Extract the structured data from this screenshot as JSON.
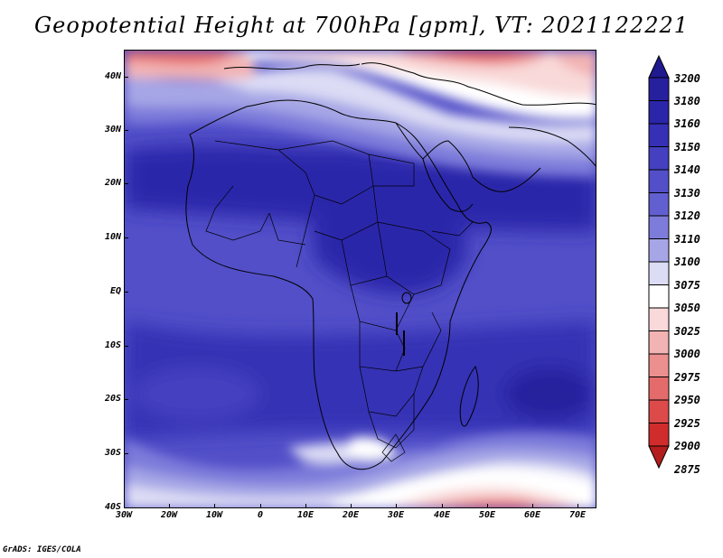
{
  "title": "Geopotential Height at 700hPa [gpm], VT: 2021122221",
  "credit": "GrADS: IGES/COLA",
  "map": {
    "lat_labels": [
      "40N",
      "30N",
      "20N",
      "10N",
      "EQ",
      "10S",
      "20S",
      "30S",
      "40S"
    ],
    "lon_labels": [
      "30W",
      "20W",
      "10W",
      "0",
      "10E",
      "20E",
      "30E",
      "40E",
      "50E",
      "60E",
      "70E"
    ]
  },
  "legend": {
    "levels": [
      "3200",
      "3180",
      "3160",
      "3150",
      "3140",
      "3130",
      "3120",
      "3110",
      "3100",
      "3075",
      "3050",
      "3025",
      "3000",
      "2975",
      "2950",
      "2925",
      "2900",
      "2875"
    ],
    "colors": [
      "#1f1a8f",
      "#26209e",
      "#2b25aa",
      "#3530b5",
      "#4440c0",
      "#524fc8",
      "#625fd0",
      "#7d7cda",
      "#a6a6e6",
      "#dcdcf5",
      "#ffffff",
      "#f9d9d9",
      "#f2b3b3",
      "#ec8f8f",
      "#e46b6b",
      "#dd4a4a",
      "#d02c2c",
      "#b41d1d"
    ]
  }
}
